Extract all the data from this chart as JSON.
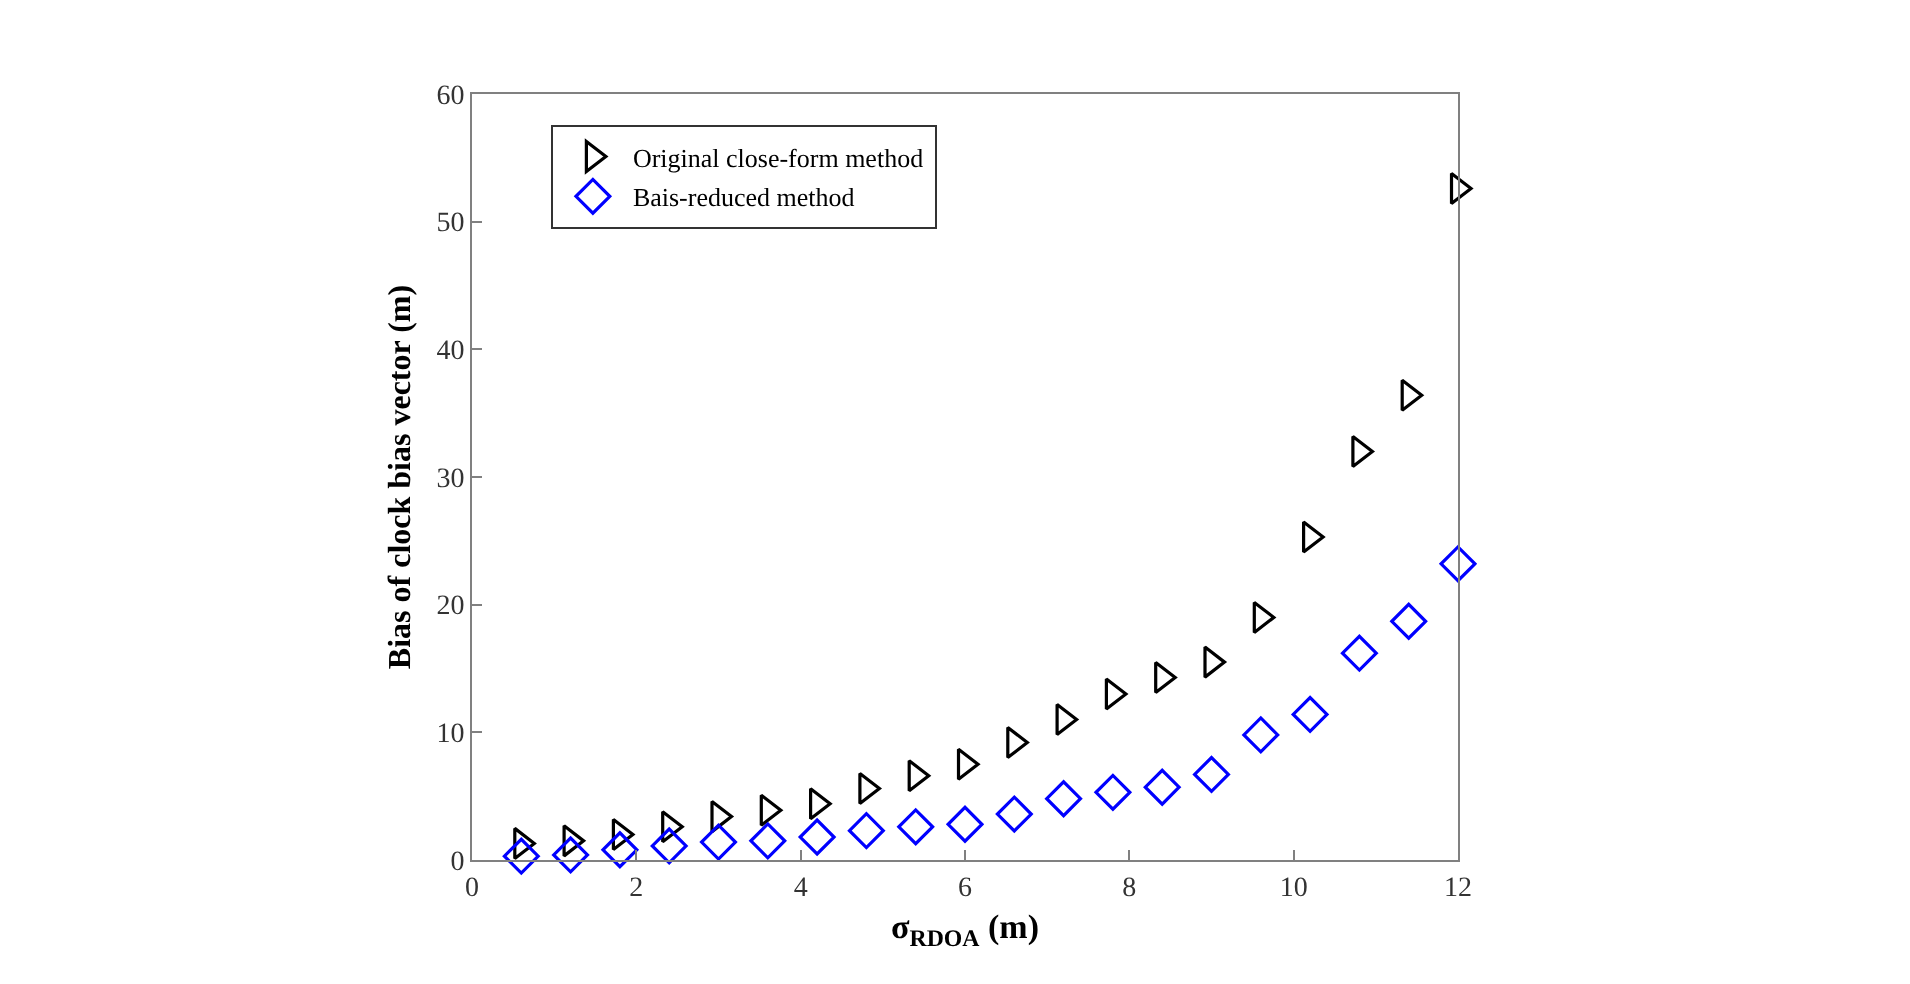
{
  "chart_data": {
    "type": "scatter",
    "xlabel": "σ$_{RDOA}$ (m)",
    "ylabel": "Bias of clock bias vector (m)",
    "x": [
      0.6,
      1.2,
      1.8,
      2.4,
      3.0,
      3.6,
      4.2,
      4.8,
      5.4,
      6.0,
      6.6,
      7.2,
      7.8,
      8.4,
      9.0,
      9.6,
      10.2,
      10.8,
      11.4,
      12.0
    ],
    "series": [
      {
        "name": "Original close-form method",
        "color": "#000000",
        "marker": "triangle",
        "values": [
          1.3,
          1.5,
          2.0,
          2.6,
          3.4,
          3.9,
          4.4,
          5.6,
          6.6,
          7.5,
          9.2,
          11.0,
          13.0,
          14.3,
          15.5,
          19.0,
          25.3,
          32.0,
          36.4,
          52.6
        ]
      },
      {
        "name": "Bais-reduced method",
        "color": "#0000ff",
        "marker": "diamond",
        "values": [
          0.3,
          0.4,
          0.8,
          1.1,
          1.4,
          1.5,
          1.8,
          2.3,
          2.6,
          2.8,
          3.6,
          4.8,
          5.3,
          5.7,
          6.7,
          9.8,
          11.4,
          16.2,
          18.7,
          23.2
        ]
      }
    ],
    "xlim": [
      0,
      12
    ],
    "xticks": [
      0,
      2,
      4,
      6,
      8,
      10,
      12
    ],
    "ylim": [
      0,
      60
    ],
    "yticks": [
      0,
      10,
      20,
      30,
      40,
      50,
      60
    ],
    "legend": "top left"
  }
}
